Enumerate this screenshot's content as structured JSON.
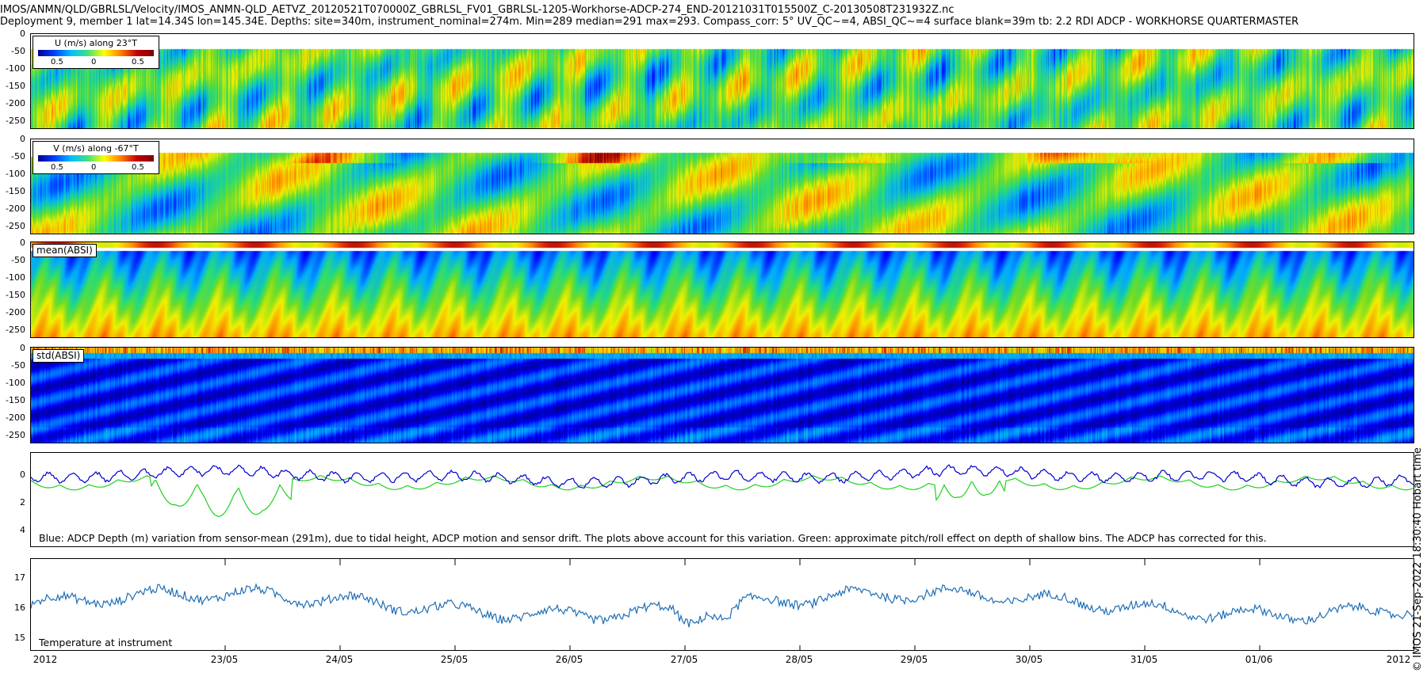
{
  "title_line1": "IMOS/ANMN/QLD/GBRLSL/Velocity/IMOS_ANMN-QLD_AETVZ_20120521T070000Z_GBRLSL_FV01_GBRLSL-1205-Workhorse-ADCP-274_END-20121031T015500Z_C-20130508T231932Z.nc",
  "title_line2": "Deployment 9, member 1 lat=14.34S lon=145.34E. Depths: site=340m, instrument_nominal=274m. Min=289 median=291 max=293. Compass_corr: 5° UV_QC~=4, ABSI_QC~=4 surface blank=39m tb: 2.2 RDI ADCP - WORKHORSE QUARTERMASTER",
  "side_label": "© IMOS 21-Sep-2022 18:30:40 Hobart time",
  "panels": {
    "u": {
      "legend_label": "U (m/s) along 23°T",
      "legend_ticks": [
        "0.5",
        "0",
        "0.5"
      ]
    },
    "v": {
      "legend_label": "V (m/s) along -67°T",
      "legend_ticks": [
        "0.5",
        "0",
        "0.5"
      ]
    },
    "mean": {
      "label": "mean(ABSI)"
    },
    "std": {
      "label": "std(ABSI)"
    },
    "depth": {
      "caption": "Blue: ADCP Depth (m) variation from sensor-mean (291m), due to tidal height, ADCP motion and sensor drift. The plots above account for this variation. Green: approximate pitch/roll effect on depth of shallow bins. The ADCP has corrected for this."
    },
    "temp": {
      "caption": "Temperature at instrument"
    }
  },
  "depth_ticks": [
    "0",
    "-50",
    "-100",
    "-150",
    "-200",
    "-250"
  ],
  "depth_var_ticks": [
    "0",
    "2",
    "4"
  ],
  "temp_ticks": [
    "17",
    "16",
    "15"
  ],
  "x_ticks": [
    "2012",
    "23/05",
    "24/05",
    "25/05",
    "26/05",
    "27/05",
    "28/05",
    "29/05",
    "30/05",
    "31/05",
    "01/06",
    "2012"
  ],
  "colors": {
    "depth_blue": "#0000d0",
    "depth_green": "#20d020",
    "temp": "#1f6fb5"
  },
  "chart_data": [
    {
      "type": "heatmap",
      "title": "U (m/s) along 23°T",
      "y_ticks": [
        0,
        -50,
        -100,
        -150,
        -200,
        -250
      ],
      "x_ticks": [
        "2012",
        "23/05",
        "24/05",
        "25/05",
        "26/05",
        "27/05",
        "28/05",
        "29/05",
        "30/05",
        "31/05",
        "01/06",
        "2012"
      ],
      "colorbar_ticks": [
        "0.5",
        "0",
        "0.5"
      ]
    },
    {
      "type": "heatmap",
      "title": "V (m/s) along -67°T",
      "y_ticks": [
        0,
        -50,
        -100,
        -150,
        -200,
        -250
      ],
      "colorbar_ticks": [
        "0.5",
        "0",
        "0.5"
      ]
    },
    {
      "type": "heatmap",
      "title": "mean(ABSI)",
      "y_ticks": [
        0,
        -50,
        -100,
        -150,
        -200,
        -250
      ]
    },
    {
      "type": "heatmap",
      "title": "std(ABSI)",
      "y_ticks": [
        0,
        -50,
        -100,
        -150,
        -200,
        -250
      ]
    },
    {
      "type": "line",
      "y_ticks": [
        0,
        2,
        4
      ],
      "ylim": [
        5,
        -2
      ],
      "series": [
        {
          "name": "Blue",
          "color": "#0000d0",
          "x": [
            "22/05",
            "23/05",
            "24/05",
            "25/05",
            "26/05",
            "27/05",
            "28/05",
            "29/05",
            "30/05",
            "31/05",
            "01/06",
            "02/06"
          ],
          "values": [
            0.4,
            1.2,
            0.2,
            -0.4,
            -0.6,
            0.2,
            -0.3,
            0.1,
            0.3,
            1.0,
            -0.5,
            -0.6
          ]
        },
        {
          "name": "Green",
          "color": "#20d020",
          "x": [
            "22/05",
            "23/05",
            "24/05",
            "25/05",
            "26/05",
            "27/05",
            "28/05",
            "29/05",
            "30/05",
            "31/05",
            "01/06",
            "02/06"
          ],
          "values": [
            0.3,
            3.5,
            1.0,
            0.2,
            0.1,
            0.4,
            0.3,
            0.2,
            0.3,
            2.0,
            1.5,
            0.1
          ]
        }
      ]
    },
    {
      "type": "line",
      "y_ticks": [
        17,
        16,
        15
      ],
      "ylim": [
        14.8,
        17.7
      ],
      "series": [
        {
          "name": "Temperature at instrument",
          "color": "#1f6fb5",
          "x": [
            "22/05",
            "23/05",
            "24/05",
            "25/05",
            "26/05",
            "27/05",
            "28/05",
            "29/05",
            "30/05",
            "31/05",
            "01/06",
            "02/06"
          ],
          "values": [
            15.8,
            16.3,
            16.6,
            16.0,
            16.3,
            16.6,
            15.9,
            16.1,
            15.9,
            15.9,
            16.4,
            15.4
          ]
        }
      ]
    }
  ]
}
